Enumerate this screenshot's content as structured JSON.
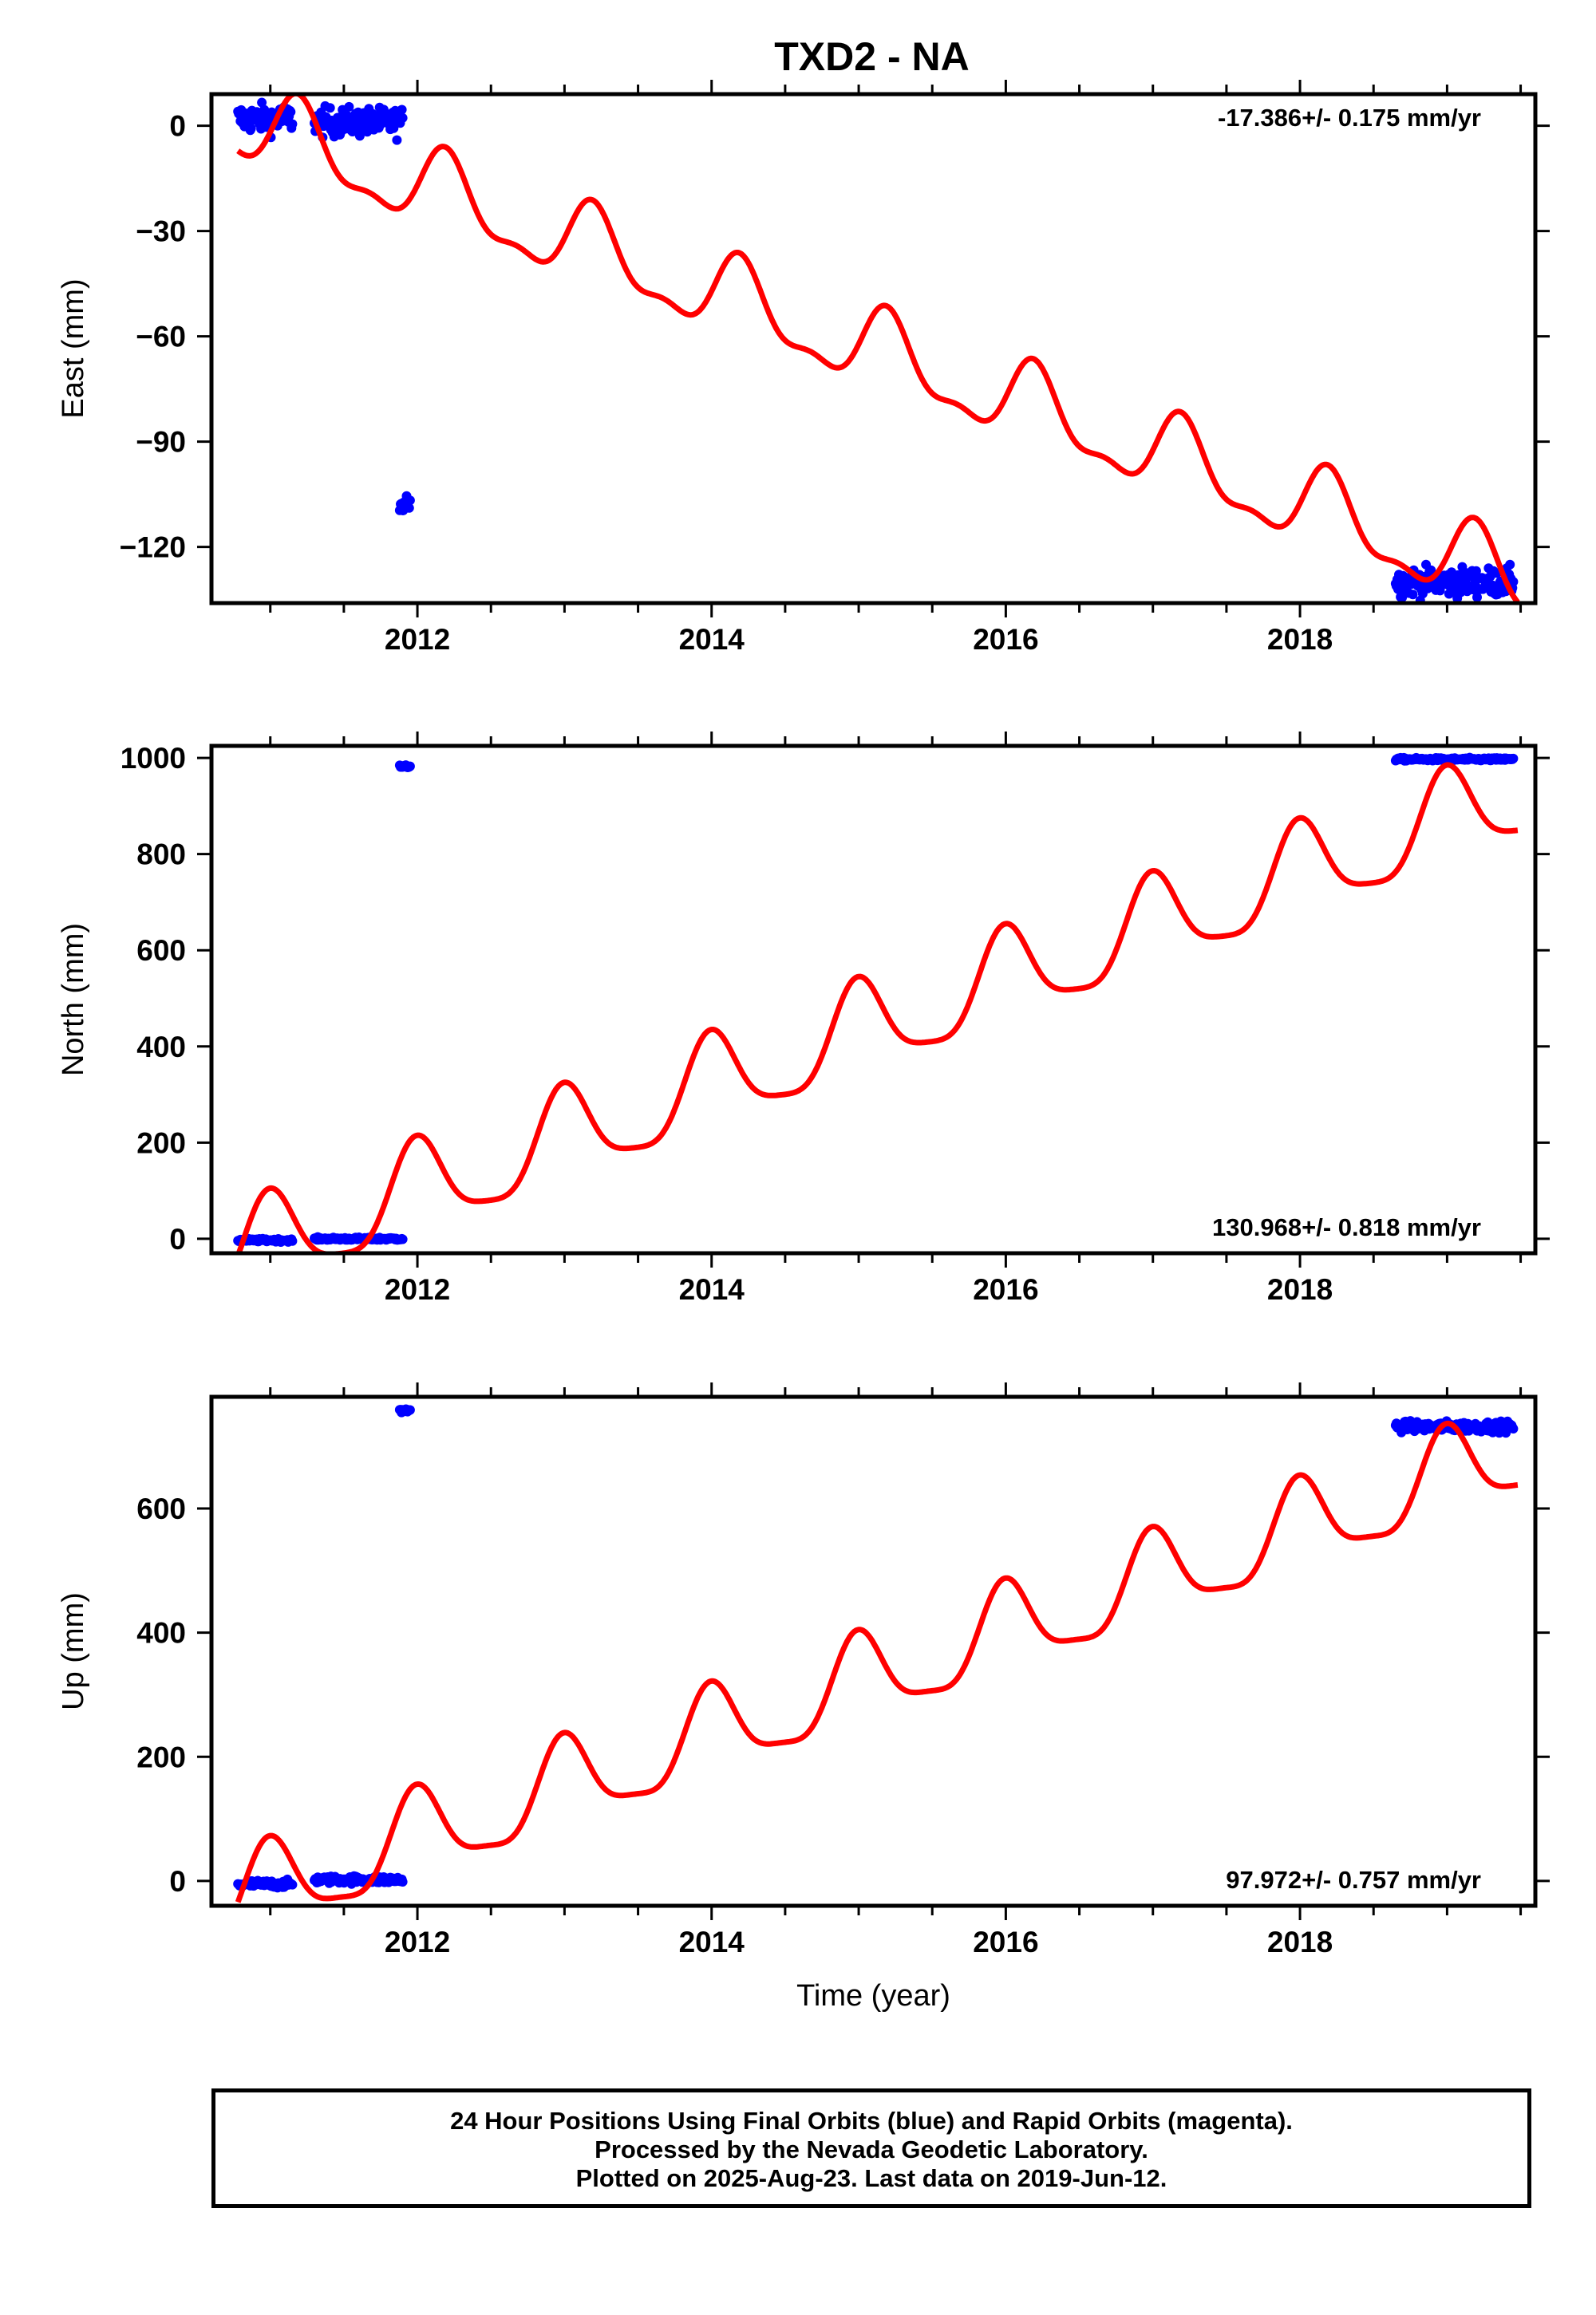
{
  "title": "TXD2 - NA",
  "colors": {
    "data": "#0000ff",
    "model": "#ff0000",
    "frame": "#000000"
  },
  "footer": {
    "line1": "24 Hour Positions Using Final Orbits (blue) and Rapid Orbits (magenta).",
    "line2": "Processed by the Nevada Geodetic Laboratory.",
    "line3": "Plotted on 2025-Aug-23. Last data on 2019-Jun-12."
  },
  "chart_data": [
    {
      "type": "scatter",
      "ylabel": "East (mm)",
      "xlabel": "",
      "rate_text": "-17.386+/- 0.175 mm/yr",
      "rate_position": "top-right",
      "xlim": [
        2010.6,
        2019.6
      ],
      "ylim": [
        -136,
        9
      ],
      "x_ticks": [
        2012,
        2014,
        2016,
        2018
      ],
      "y_ticks": [
        0,
        -30,
        -60,
        -90,
        -120
      ],
      "y_tick_labels": [
        "0",
        "−30",
        "−60",
        "−90",
        "−120"
      ],
      "grid": false,
      "series": [
        {
          "kind": "points",
          "segments": [
            {
              "x": [
                2010.78,
                2011.15
              ],
              "mean": 2,
              "spread": 4
            },
            {
              "x": [
                2011.3,
                2011.9
              ],
              "mean": 1,
              "spread": 4
            },
            {
              "x": [
                2011.88,
                2011.95
              ],
              "mean": -107,
              "spread": 3
            },
            {
              "x": [
                2018.65,
                2019.45
              ],
              "mean": -130,
              "spread": 4
            }
          ]
        },
        {
          "kind": "model",
          "intercept": 0.5,
          "intercept_epoch": 2010.8,
          "rate_mm_per_yr": -15.1,
          "annual_amplitude": 10.5,
          "annual_peak_epoch": 2011.2,
          "semiannual_amplitude": 4,
          "semiannual_peak_epoch": 2011.18,
          "x_range": [
            2010.78,
            2019.48
          ]
        }
      ]
    },
    {
      "type": "scatter",
      "ylabel": "North (mm)",
      "xlabel": "",
      "rate_text": "130.968+/- 0.818 mm/yr",
      "rate_position": "bottom-right",
      "xlim": [
        2010.6,
        2019.6
      ],
      "ylim": [
        -30,
        1025
      ],
      "x_ticks": [
        2012,
        2014,
        2016,
        2018
      ],
      "y_ticks": [
        0,
        200,
        400,
        600,
        800,
        1000
      ],
      "y_tick_labels": [
        "0",
        "200",
        "400",
        "600",
        "800",
        "1000"
      ],
      "grid": false,
      "series": [
        {
          "kind": "points",
          "segments": [
            {
              "x": [
                2010.78,
                2011.15
              ],
              "mean": -3,
              "spread": 3
            },
            {
              "x": [
                2011.3,
                2011.9
              ],
              "mean": 0,
              "spread": 3
            },
            {
              "x": [
                2011.88,
                2011.95
              ],
              "mean": 982,
              "spread": 3
            },
            {
              "x": [
                2018.65,
                2019.45
              ],
              "mean": 997,
              "spread": 3
            }
          ]
        },
        {
          "kind": "model",
          "intercept": -33,
          "intercept_epoch": 2010.8,
          "rate_mm_per_yr": 110,
          "annual_amplitude": 95,
          "annual_peak_epoch": 2011.0,
          "semiannual_amplitude": 22,
          "semiannual_peak_epoch": 2010.98,
          "x_range": [
            2010.78,
            2019.48
          ]
        }
      ]
    },
    {
      "type": "scatter",
      "ylabel": "Up (mm)",
      "xlabel": "Time (year)",
      "rate_text": "97.972+/- 0.757 mm/yr",
      "rate_position": "bottom-right",
      "xlim": [
        2010.6,
        2019.6
      ],
      "ylim": [
        -40,
        780
      ],
      "x_ticks": [
        2012,
        2014,
        2016,
        2018
      ],
      "y_ticks": [
        0,
        200,
        400,
        600
      ],
      "y_tick_labels": [
        "0",
        "200",
        "400",
        "600"
      ],
      "grid": false,
      "series": [
        {
          "kind": "points",
          "segments": [
            {
              "x": [
                2010.78,
                2011.15
              ],
              "mean": -5,
              "spread": 6
            },
            {
              "x": [
                2011.3,
                2011.9
              ],
              "mean": 2,
              "spread": 6
            },
            {
              "x": [
                2011.88,
                2011.95
              ],
              "mean": 758,
              "spread": 3
            },
            {
              "x": [
                2018.65,
                2019.45
              ],
              "mean": 732,
              "spread": 8
            }
          ]
        },
        {
          "kind": "model",
          "intercept": -31,
          "intercept_epoch": 2010.8,
          "rate_mm_per_yr": 83,
          "annual_amplitude": 70,
          "annual_peak_epoch": 2011.0,
          "semiannual_amplitude": 18,
          "semiannual_peak_epoch": 2010.98,
          "x_range": [
            2010.78,
            2019.48
          ]
        }
      ]
    }
  ]
}
